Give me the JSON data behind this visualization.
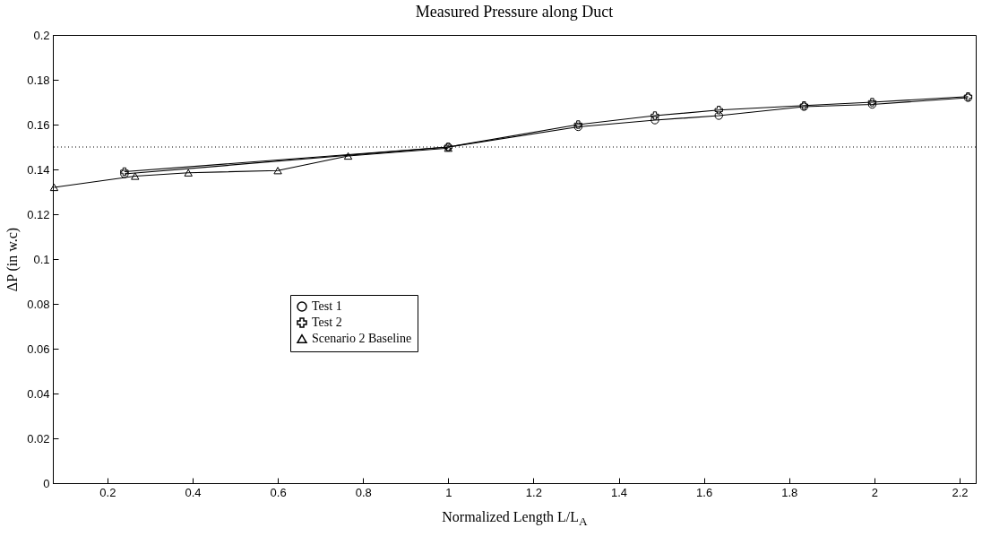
{
  "chart_data": {
    "type": "line",
    "title": "Measured Pressure along Duct",
    "xlabel": "Normalized Length L/L$_{A}$",
    "ylabel": "ΔP (in w.c)",
    "xlim": [
      0.072,
      2.238
    ],
    "xticks": [
      0.2,
      0.4,
      0.6,
      0.8,
      1,
      1.2,
      1.4,
      1.6,
      1.8,
      2,
      2.2
    ],
    "ylim": [
      0,
      0.2
    ],
    "yticks": [
      0,
      0.02,
      0.04,
      0.06,
      0.08,
      0.1,
      0.12,
      0.14,
      0.16,
      0.18,
      0.2
    ],
    "grid": false,
    "legend": "left",
    "line_style": "solid",
    "ref_lines": [
      {
        "axis": "y",
        "value": 0.15,
        "line_style": "dotted",
        "color": "#000000"
      }
    ],
    "series": [
      {
        "name": "Test 1",
        "color": "#000000",
        "marker": "circle",
        "x": [
          0.24,
          1.0,
          1.305,
          1.485,
          1.635,
          1.835,
          1.995,
          2.22
        ],
        "values": [
          0.138,
          0.15,
          0.159,
          0.162,
          0.164,
          0.168,
          0.169,
          0.172
        ]
      },
      {
        "name": "Test 2",
        "color": "#000000",
        "marker": "cross",
        "x": [
          0.24,
          1.0,
          1.305,
          1.485,
          1.635,
          1.835,
          1.995,
          2.22
        ],
        "values": [
          0.139,
          0.15,
          0.16,
          0.164,
          0.1665,
          0.1685,
          0.17,
          0.1725
        ]
      },
      {
        "name": "Scenario 2 Baseline",
        "color": "#000000",
        "marker": "triangle",
        "x": [
          0.075,
          0.265,
          0.39,
          0.6,
          0.765,
          1.0
        ],
        "values": [
          0.132,
          0.137,
          0.1385,
          0.1395,
          0.146,
          0.1495
        ]
      }
    ]
  }
}
